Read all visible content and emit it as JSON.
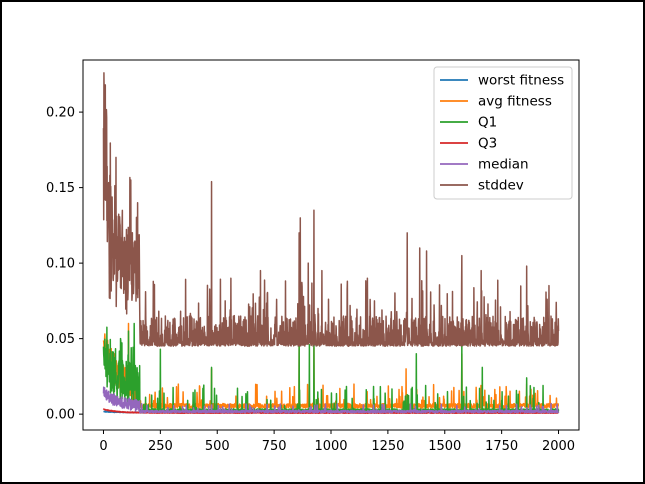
{
  "chart_data": {
    "type": "line",
    "title": "",
    "xlabel": "",
    "ylabel": "",
    "xlim": [
      -90,
      2090
    ],
    "ylim": [
      -0.0105,
      0.2345
    ],
    "x_ticks": [
      {
        "value": 0,
        "label": "0"
      },
      {
        "value": 250,
        "label": "250"
      },
      {
        "value": 500,
        "label": "500"
      },
      {
        "value": 750,
        "label": "750"
      },
      {
        "value": 1000,
        "label": "1000"
      },
      {
        "value": 1250,
        "label": "1250"
      },
      {
        "value": 1500,
        "label": "1500"
      },
      {
        "value": 1750,
        "label": "1750"
      },
      {
        "value": 2000,
        "label": "2000"
      }
    ],
    "y_ticks": [
      {
        "value": 0.0,
        "label": "0.00"
      },
      {
        "value": 0.05,
        "label": "0.05"
      },
      {
        "value": 0.1,
        "label": "0.10"
      },
      {
        "value": 0.15,
        "label": "0.15"
      },
      {
        "value": 0.2,
        "label": "0.20"
      }
    ],
    "grid": false,
    "legend_position": "top-right",
    "x_range": [
      0,
      2000
    ],
    "series": [
      {
        "name": "worst fitness",
        "color": "#1f77b4",
        "floor": 0.0008,
        "spike_peak": 0.0015
      },
      {
        "name": "avg fitness",
        "color": "#ff7f0e",
        "floor": 0.004,
        "spike_peak": 0.042
      },
      {
        "name": "Q1",
        "color": "#2ca02c",
        "floor": 0.0015,
        "spike_peak": 0.046
      },
      {
        "name": "Q3",
        "color": "#d62728",
        "floor": 0.0006,
        "spike_peak": 0.003
      },
      {
        "name": "median",
        "color": "#9467bd",
        "floor": 0.001,
        "spike_peak": 0.012
      },
      {
        "name": "stddev",
        "color": "#8c564b",
        "floor": 0.045,
        "spike_peak": 0.226
      }
    ],
    "annotations": [
      {
        "series": "stddev",
        "x": 2,
        "y": 0.226
      },
      {
        "series": "stddev",
        "x": 475,
        "y": 0.154
      },
      {
        "series": "stddev",
        "x": 865,
        "y": 0.13
      },
      {
        "series": "stddev",
        "x": 925,
        "y": 0.135
      },
      {
        "series": "stddev",
        "x": 1335,
        "y": 0.12
      },
      {
        "series": "stddev",
        "x": 1575,
        "y": 0.105
      },
      {
        "series": "stddev",
        "x": 1860,
        "y": 0.098
      }
    ]
  }
}
